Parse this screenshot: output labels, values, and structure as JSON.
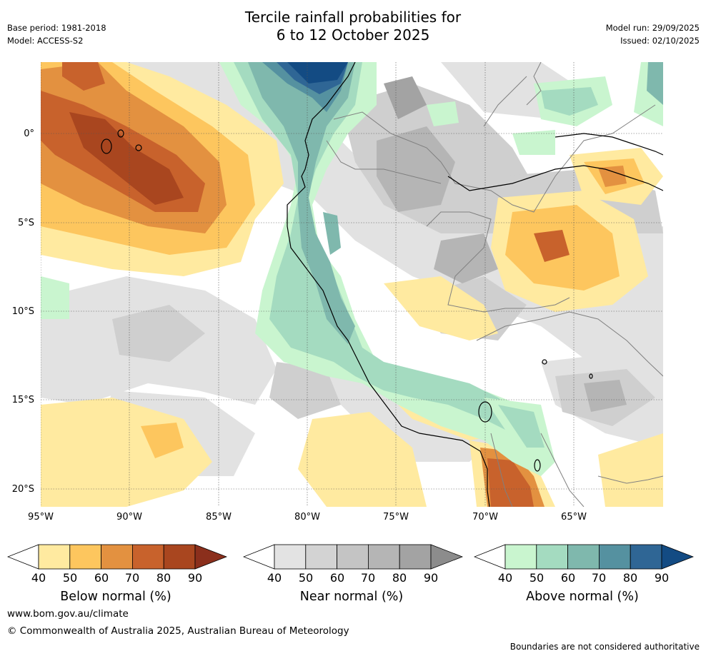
{
  "header": {
    "title_line1": "Tercile rainfall probabilities for",
    "title_line2": "6 to 12 October 2025",
    "base_period": "Base period: 1981-2018",
    "model": "Model: ACCESS-S2",
    "model_run": "Model run: 29/09/2025",
    "issued": "Issued: 02/10/2025"
  },
  "map": {
    "longitude_ticks": [
      "95°W",
      "90°W",
      "85°W",
      "80°W",
      "75°W",
      "70°W",
      "65°W"
    ],
    "latitude_ticks": [
      "0°",
      "5°S",
      "10°S",
      "15°S",
      "20°S"
    ],
    "colors": {
      "background": "#ffffff",
      "near_light": "#e2e2e2",
      "near_mid": "#cfcfcf",
      "near_dark": "#b5b5b5",
      "near_darkest": "#a3a3a3",
      "below_40": "#ffeaa0",
      "below_50": "#fdc65e",
      "below_60": "#e39140",
      "below_70": "#c8622c",
      "below_80": "#a9461f",
      "above_40": "#c9f5cf",
      "above_50": "#a4dbc0",
      "above_60": "#7fb8ad",
      "above_70": "#5591a0",
      "above_80": "#2f6695",
      "above_90": "#134b83",
      "coast": "#000000",
      "border": "#808080",
      "gridline": "#555555"
    }
  },
  "legends": [
    {
      "label": "Below normal (%)",
      "ticks": [
        "40",
        "50",
        "60",
        "70",
        "80",
        "90"
      ],
      "colors": [
        "#ffffff",
        "#ffeaa0",
        "#fdc65e",
        "#e39140",
        "#c8622c",
        "#a9461f",
        "#8b2f1c"
      ]
    },
    {
      "label": "Near normal (%)",
      "ticks": [
        "40",
        "50",
        "60",
        "70",
        "80",
        "90"
      ],
      "colors": [
        "#ffffff",
        "#e3e3e3",
        "#d3d3d3",
        "#c4c4c4",
        "#b5b5b5",
        "#a3a3a3",
        "#8c8c8c"
      ]
    },
    {
      "label": "Above normal (%)",
      "ticks": [
        "40",
        "50",
        "60",
        "70",
        "80",
        "90"
      ],
      "colors": [
        "#ffffff",
        "#c9f5cf",
        "#a4dbc0",
        "#7fb8ad",
        "#5591a0",
        "#2f6695",
        "#134b83"
      ]
    }
  ],
  "footer": {
    "website": "www.bom.gov.au/climate",
    "copyright": "© Commonwealth of Australia 2025, Australian Bureau of Meteorology",
    "disclaimer": "Boundaries are not considered authoritative"
  }
}
